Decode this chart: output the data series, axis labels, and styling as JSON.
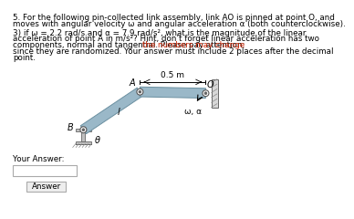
{
  "title_line1": "5. For the following pin-collected link assembly, link AO is pinned at point O, and",
  "title_line2": "moves with angular velocity ω and angular acceleration α (both counterclockwise).",
  "q_line1": "3) if ω = 2.2 rad/s and α = 7.9 rad/s², what is the magnitude of the linear",
  "q_line2": "acceleration of point A in m/s²? Hint, don’t forget linear acceleration has two",
  "q_line3_black1": "components, normal and tangential. Please pay attention: ",
  "q_line3_red": "the numbers may change",
  "q_line4": "since they are randomized. Your answer must include 2 places after the decimal",
  "q_line5": "point.",
  "label_05m": "0.5 m",
  "label_A": "A",
  "label_O": "O",
  "label_omega_alpha": "ω, α",
  "label_B": "B",
  "label_theta": "θ",
  "label_l": "l",
  "your_answer_label": "Your Answer:",
  "answer_button": "Answer",
  "bg_color": "#ffffff",
  "text_color": "#000000",
  "red_color": "#cc2200",
  "link_color": "#9ab8c8",
  "link_edge": "#6a8fa0",
  "wall_color": "#b0b0b0",
  "ground_color": "#c8b890",
  "ibeam_color": "#c0c0c0"
}
